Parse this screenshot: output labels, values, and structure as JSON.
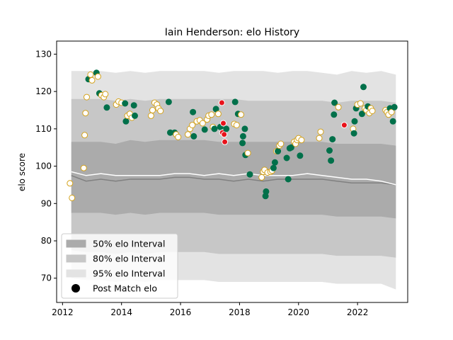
{
  "chart_data": {
    "type": "scatter",
    "title": "Iain Henderson: elo History",
    "xlabel": "",
    "ylabel": "elo score",
    "xlim": [
      2011.8,
      2023.7
    ],
    "ylim": [
      63.5,
      133.5
    ],
    "x_ticks": [
      "2012",
      "2014",
      "2016",
      "2018",
      "2020",
      "2022"
    ],
    "x_tick_values": [
      2012,
      2014,
      2016,
      2018,
      2020,
      2022
    ],
    "y_ticks": [
      "70",
      "80",
      "90",
      "100",
      "110",
      "120",
      "130"
    ],
    "y_tick_values": [
      70,
      80,
      90,
      100,
      110,
      120,
      130
    ],
    "grid": false,
    "legend_position": "lower-left",
    "legend": [
      {
        "label": "50% elo Interval",
        "color": "#ababab",
        "kind": "patch"
      },
      {
        "label": "80% elo Interval",
        "color": "#c7c7c7",
        "kind": "patch"
      },
      {
        "label": "95% elo Interval",
        "color": "#e3e3e3",
        "kind": "patch"
      },
      {
        "label": "Post Match elo",
        "color": "#000000",
        "kind": "marker"
      }
    ],
    "colors": {
      "band95": "#e3e3e3",
      "band80": "#c7c7c7",
      "band50": "#ababab",
      "mean_line": "#808080",
      "median_line": "#ffffff",
      "win": "#00704a",
      "loss_fill": "#ffffff",
      "loss_edge": "#d4a21b",
      "red": "#e8131b"
    },
    "bands": {
      "x": [
        2012.3,
        2012.8,
        2013.3,
        2013.8,
        2014.3,
        2014.8,
        2015.3,
        2015.8,
        2016.3,
        2016.8,
        2017.3,
        2017.8,
        2018.3,
        2018.8,
        2019.3,
        2019.8,
        2020.3,
        2020.8,
        2021.3,
        2021.8,
        2022.3,
        2022.8,
        2023.3
      ],
      "p95_hi": [
        125.5,
        125.5,
        125.5,
        125.0,
        125.5,
        125.0,
        125.5,
        125.5,
        125.5,
        125.5,
        125.0,
        125.5,
        125.5,
        125.5,
        125.0,
        125.5,
        125.5,
        125.0,
        124.5,
        125.5,
        125.0,
        125.5,
        124.5
      ],
      "p80_hi": [
        118.0,
        118.0,
        118.0,
        117.5,
        118.0,
        117.5,
        118.0,
        118.0,
        118.0,
        118.0,
        118.0,
        118.0,
        117.5,
        117.5,
        117.5,
        117.5,
        117.5,
        117.5,
        117.0,
        117.5,
        117.5,
        117.5,
        117.0
      ],
      "p50_hi": [
        106.5,
        106.5,
        106.5,
        106.0,
        107.0,
        106.5,
        107.0,
        107.0,
        107.0,
        107.0,
        106.5,
        106.5,
        106.5,
        106.5,
        106.5,
        106.5,
        106.5,
        106.5,
        106.0,
        106.0,
        106.0,
        106.0,
        105.5
      ],
      "p50_lo": [
        87.5,
        87.5,
        87.5,
        87.0,
        87.5,
        87.0,
        87.5,
        87.5,
        87.5,
        87.5,
        87.0,
        87.0,
        87.0,
        87.0,
        87.0,
        87.0,
        87.0,
        87.0,
        86.5,
        86.5,
        86.5,
        86.5,
        86.0
      ],
      "p80_lo": [
        77.5,
        77.0,
        77.0,
        76.5,
        77.0,
        76.5,
        77.0,
        77.0,
        77.0,
        77.0,
        76.5,
        76.5,
        76.5,
        76.5,
        76.5,
        76.5,
        76.5,
        76.5,
        76.0,
        76.0,
        76.0,
        76.0,
        75.5
      ],
      "p95_lo": [
        70.0,
        69.5,
        69.5,
        69.0,
        69.5,
        69.0,
        69.5,
        69.5,
        69.5,
        69.5,
        69.0,
        69.0,
        69.0,
        69.0,
        69.0,
        69.0,
        69.0,
        69.0,
        68.5,
        68.5,
        68.5,
        68.5,
        67.0
      ]
    },
    "mean_line": {
      "x": [
        2012.3,
        2012.8,
        2013.3,
        2013.8,
        2014.3,
        2014.8,
        2015.3,
        2015.8,
        2016.3,
        2016.8,
        2017.3,
        2017.8,
        2018.3,
        2018.8,
        2019.3,
        2019.8,
        2020.3,
        2020.8,
        2021.3,
        2021.8,
        2022.3,
        2022.8,
        2023.3
      ],
      "y": [
        97.5,
        96.0,
        96.5,
        96.0,
        96.5,
        96.5,
        96.5,
        97.0,
        97.0,
        96.5,
        96.5,
        96.0,
        96.5,
        96.0,
        96.5,
        96.5,
        96.5,
        96.5,
        96.0,
        95.5,
        95.5,
        95.5,
        95.0
      ]
    },
    "median_line": {
      "x": [
        2012.3,
        2012.8,
        2013.3,
        2013.8,
        2014.3,
        2014.8,
        2015.3,
        2015.8,
        2016.3,
        2016.8,
        2017.3,
        2017.8,
        2018.3,
        2018.8,
        2019.3,
        2019.8,
        2020.3,
        2020.8,
        2021.3,
        2021.8,
        2022.3,
        2022.8,
        2023.3
      ],
      "y": [
        98.5,
        97.5,
        98.0,
        97.5,
        97.5,
        97.5,
        97.5,
        98.0,
        98.0,
        97.5,
        98.0,
        97.5,
        98.0,
        97.5,
        97.5,
        97.5,
        98.0,
        97.5,
        97.0,
        96.5,
        96.5,
        96.0,
        95.0
      ]
    },
    "points": [
      {
        "x": 2012.25,
        "y": 95.4,
        "kind": "loss"
      },
      {
        "x": 2012.32,
        "y": 91.5,
        "kind": "loss"
      },
      {
        "x": 2012.72,
        "y": 99.5,
        "kind": "loss"
      },
      {
        "x": 2012.75,
        "y": 108.3,
        "kind": "loss"
      },
      {
        "x": 2012.78,
        "y": 114.2,
        "kind": "loss"
      },
      {
        "x": 2012.82,
        "y": 118.5,
        "kind": "loss"
      },
      {
        "x": 2012.88,
        "y": 123.3,
        "kind": "win"
      },
      {
        "x": 2012.95,
        "y": 124.5,
        "kind": "loss"
      },
      {
        "x": 2013.0,
        "y": 123.0,
        "kind": "loss"
      },
      {
        "x": 2013.15,
        "y": 125.0,
        "kind": "win"
      },
      {
        "x": 2013.2,
        "y": 124.0,
        "kind": "loss"
      },
      {
        "x": 2013.25,
        "y": 119.5,
        "kind": "win"
      },
      {
        "x": 2013.32,
        "y": 119.0,
        "kind": "loss"
      },
      {
        "x": 2013.4,
        "y": 118.5,
        "kind": "loss"
      },
      {
        "x": 2013.45,
        "y": 119.3,
        "kind": "loss"
      },
      {
        "x": 2013.5,
        "y": 115.7,
        "kind": "win"
      },
      {
        "x": 2013.82,
        "y": 116.5,
        "kind": "loss"
      },
      {
        "x": 2013.9,
        "y": 117.3,
        "kind": "loss"
      },
      {
        "x": 2014.0,
        "y": 117.0,
        "kind": "loss"
      },
      {
        "x": 2014.12,
        "y": 116.8,
        "kind": "win"
      },
      {
        "x": 2014.15,
        "y": 112.0,
        "kind": "win"
      },
      {
        "x": 2014.2,
        "y": 113.5,
        "kind": "loss"
      },
      {
        "x": 2014.28,
        "y": 114.0,
        "kind": "loss"
      },
      {
        "x": 2014.35,
        "y": 113.0,
        "kind": "loss"
      },
      {
        "x": 2014.42,
        "y": 116.3,
        "kind": "win"
      },
      {
        "x": 2014.45,
        "y": 113.5,
        "kind": "win"
      },
      {
        "x": 2015.0,
        "y": 113.5,
        "kind": "loss"
      },
      {
        "x": 2015.05,
        "y": 115.0,
        "kind": "loss"
      },
      {
        "x": 2015.12,
        "y": 117.0,
        "kind": "loss"
      },
      {
        "x": 2015.2,
        "y": 116.5,
        "kind": "loss"
      },
      {
        "x": 2015.25,
        "y": 115.5,
        "kind": "loss"
      },
      {
        "x": 2015.32,
        "y": 114.8,
        "kind": "loss"
      },
      {
        "x": 2015.6,
        "y": 117.2,
        "kind": "win"
      },
      {
        "x": 2015.65,
        "y": 109.0,
        "kind": "win"
      },
      {
        "x": 2015.8,
        "y": 109.0,
        "kind": "win"
      },
      {
        "x": 2015.85,
        "y": 108.5,
        "kind": "loss"
      },
      {
        "x": 2015.92,
        "y": 107.8,
        "kind": "loss"
      },
      {
        "x": 2016.25,
        "y": 108.5,
        "kind": "loss"
      },
      {
        "x": 2016.32,
        "y": 110.0,
        "kind": "loss"
      },
      {
        "x": 2016.4,
        "y": 111.0,
        "kind": "loss"
      },
      {
        "x": 2016.42,
        "y": 114.5,
        "kind": "win"
      },
      {
        "x": 2016.45,
        "y": 108.0,
        "kind": "win"
      },
      {
        "x": 2016.55,
        "y": 112.0,
        "kind": "loss"
      },
      {
        "x": 2016.65,
        "y": 112.3,
        "kind": "loss"
      },
      {
        "x": 2016.75,
        "y": 111.5,
        "kind": "loss"
      },
      {
        "x": 2016.82,
        "y": 109.8,
        "kind": "win"
      },
      {
        "x": 2016.9,
        "y": 112.5,
        "kind": "loss"
      },
      {
        "x": 2016.95,
        "y": 113.5,
        "kind": "loss"
      },
      {
        "x": 2017.05,
        "y": 113.8,
        "kind": "loss"
      },
      {
        "x": 2017.1,
        "y": 110.5,
        "kind": "loss"
      },
      {
        "x": 2017.15,
        "y": 110.0,
        "kind": "win"
      },
      {
        "x": 2017.2,
        "y": 115.3,
        "kind": "win"
      },
      {
        "x": 2017.28,
        "y": 114.0,
        "kind": "loss"
      },
      {
        "x": 2017.35,
        "y": 110.5,
        "kind": "win"
      },
      {
        "x": 2017.4,
        "y": 117.0,
        "kind": "red"
      },
      {
        "x": 2017.42,
        "y": 109.0,
        "kind": "red"
      },
      {
        "x": 2017.45,
        "y": 111.5,
        "kind": "red"
      },
      {
        "x": 2017.48,
        "y": 108.5,
        "kind": "red"
      },
      {
        "x": 2017.5,
        "y": 106.5,
        "kind": "red"
      },
      {
        "x": 2017.55,
        "y": 110.0,
        "kind": "win"
      },
      {
        "x": 2017.82,
        "y": 111.3,
        "kind": "loss"
      },
      {
        "x": 2017.9,
        "y": 111.0,
        "kind": "loss"
      },
      {
        "x": 2017.85,
        "y": 117.2,
        "kind": "win"
      },
      {
        "x": 2017.95,
        "y": 114.0,
        "kind": "win"
      },
      {
        "x": 2018.05,
        "y": 113.8,
        "kind": "loss"
      },
      {
        "x": 2018.1,
        "y": 106.2,
        "kind": "win"
      },
      {
        "x": 2018.12,
        "y": 108.0,
        "kind": "win"
      },
      {
        "x": 2018.18,
        "y": 110.0,
        "kind": "win"
      },
      {
        "x": 2018.2,
        "y": 103.0,
        "kind": "win"
      },
      {
        "x": 2018.28,
        "y": 103.5,
        "kind": "loss"
      },
      {
        "x": 2018.35,
        "y": 97.8,
        "kind": "win"
      },
      {
        "x": 2018.75,
        "y": 97.0,
        "kind": "loss"
      },
      {
        "x": 2018.8,
        "y": 98.5,
        "kind": "loss"
      },
      {
        "x": 2018.85,
        "y": 99.0,
        "kind": "loss"
      },
      {
        "x": 2018.88,
        "y": 92.0,
        "kind": "win"
      },
      {
        "x": 2018.9,
        "y": 93.2,
        "kind": "win"
      },
      {
        "x": 2018.95,
        "y": 98.3,
        "kind": "loss"
      },
      {
        "x": 2019.05,
        "y": 98.5,
        "kind": "loss"
      },
      {
        "x": 2019.1,
        "y": 98.8,
        "kind": "loss"
      },
      {
        "x": 2019.15,
        "y": 99.5,
        "kind": "win"
      },
      {
        "x": 2019.2,
        "y": 101.0,
        "kind": "win"
      },
      {
        "x": 2019.25,
        "y": 104.0,
        "kind": "loss"
      },
      {
        "x": 2019.3,
        "y": 104.0,
        "kind": "win"
      },
      {
        "x": 2019.35,
        "y": 105.5,
        "kind": "loss"
      },
      {
        "x": 2019.4,
        "y": 106.0,
        "kind": "loss"
      },
      {
        "x": 2019.6,
        "y": 102.2,
        "kind": "win"
      },
      {
        "x": 2019.65,
        "y": 96.5,
        "kind": "win"
      },
      {
        "x": 2019.7,
        "y": 104.8,
        "kind": "win"
      },
      {
        "x": 2019.75,
        "y": 105.0,
        "kind": "win"
      },
      {
        "x": 2019.85,
        "y": 106.5,
        "kind": "loss"
      },
      {
        "x": 2019.9,
        "y": 106.0,
        "kind": "loss"
      },
      {
        "x": 2019.95,
        "y": 107.0,
        "kind": "loss"
      },
      {
        "x": 2020.0,
        "y": 107.5,
        "kind": "loss"
      },
      {
        "x": 2020.05,
        "y": 102.8,
        "kind": "win"
      },
      {
        "x": 2020.1,
        "y": 107.0,
        "kind": "loss"
      },
      {
        "x": 2020.7,
        "y": 107.5,
        "kind": "loss"
      },
      {
        "x": 2020.75,
        "y": 109.2,
        "kind": "loss"
      },
      {
        "x": 2021.05,
        "y": 104.2,
        "kind": "win"
      },
      {
        "x": 2021.1,
        "y": 101.5,
        "kind": "win"
      },
      {
        "x": 2021.15,
        "y": 107.2,
        "kind": "win"
      },
      {
        "x": 2021.2,
        "y": 113.8,
        "kind": "win"
      },
      {
        "x": 2021.22,
        "y": 117.0,
        "kind": "win"
      },
      {
        "x": 2021.35,
        "y": 115.8,
        "kind": "loss"
      },
      {
        "x": 2021.55,
        "y": 111.0,
        "kind": "red"
      },
      {
        "x": 2021.85,
        "y": 110.0,
        "kind": "loss"
      },
      {
        "x": 2021.88,
        "y": 108.8,
        "kind": "win"
      },
      {
        "x": 2021.9,
        "y": 112.0,
        "kind": "win"
      },
      {
        "x": 2021.95,
        "y": 115.5,
        "kind": "win"
      },
      {
        "x": 2022.0,
        "y": 116.5,
        "kind": "loss"
      },
      {
        "x": 2022.1,
        "y": 116.8,
        "kind": "loss"
      },
      {
        "x": 2022.15,
        "y": 114.0,
        "kind": "win"
      },
      {
        "x": 2022.2,
        "y": 121.2,
        "kind": "win"
      },
      {
        "x": 2022.25,
        "y": 115.5,
        "kind": "loss"
      },
      {
        "x": 2022.3,
        "y": 115.0,
        "kind": "loss"
      },
      {
        "x": 2022.35,
        "y": 116.0,
        "kind": "win"
      },
      {
        "x": 2022.4,
        "y": 114.2,
        "kind": "loss"
      },
      {
        "x": 2022.45,
        "y": 115.5,
        "kind": "loss"
      },
      {
        "x": 2022.5,
        "y": 114.8,
        "kind": "loss"
      },
      {
        "x": 2022.95,
        "y": 115.0,
        "kind": "loss"
      },
      {
        "x": 2023.0,
        "y": 114.5,
        "kind": "loss"
      },
      {
        "x": 2023.05,
        "y": 113.8,
        "kind": "loss"
      },
      {
        "x": 2023.1,
        "y": 115.5,
        "kind": "win"
      },
      {
        "x": 2023.15,
        "y": 114.5,
        "kind": "loss"
      },
      {
        "x": 2023.2,
        "y": 112.0,
        "kind": "win"
      },
      {
        "x": 2023.25,
        "y": 115.8,
        "kind": "win"
      }
    ]
  }
}
